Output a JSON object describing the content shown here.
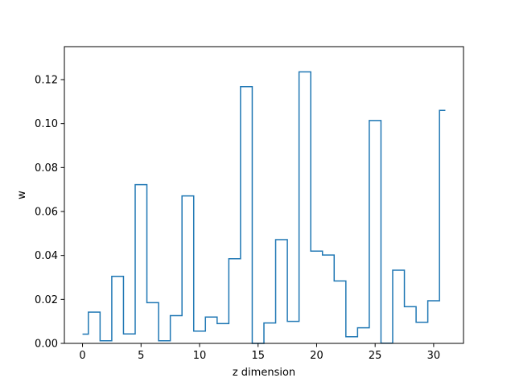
{
  "chart_data": {
    "type": "line",
    "drawstyle": "steps-mid",
    "title": "",
    "xlabel": "z dimension",
    "ylabel": "w",
    "xlim": [
      -1.55,
      32.55
    ],
    "ylim": [
      0.0,
      0.135
    ],
    "xticks": [
      0,
      5,
      10,
      15,
      20,
      25,
      30
    ],
    "yticks": [
      0.0,
      0.02,
      0.04,
      0.06,
      0.08,
      0.1,
      0.12
    ],
    "ytick_labels": [
      "0.00",
      "0.02",
      "0.04",
      "0.06",
      "0.08",
      "0.10",
      "0.12"
    ],
    "grid": false,
    "series": [
      {
        "color": "#1f77b4",
        "x": [
          0,
          1,
          2,
          3,
          4,
          5,
          6,
          7,
          8,
          9,
          10,
          11,
          12,
          13,
          14,
          15,
          16,
          17,
          18,
          19,
          20,
          21,
          22,
          23,
          24,
          25,
          26,
          27,
          28,
          29,
          30,
          31
        ],
        "y": [
          0.0042,
          0.0142,
          0.0012,
          0.0305,
          0.0043,
          0.0722,
          0.0185,
          0.0012,
          0.0126,
          0.0671,
          0.0056,
          0.012,
          0.009,
          0.0385,
          0.1168,
          0.0,
          0.0093,
          0.0472,
          0.01,
          0.1235,
          0.042,
          0.0402,
          0.0284,
          0.003,
          0.0071,
          0.1014,
          0.0001,
          0.0333,
          0.0167,
          0.0096,
          0.0194,
          0.106
        ]
      }
    ]
  }
}
